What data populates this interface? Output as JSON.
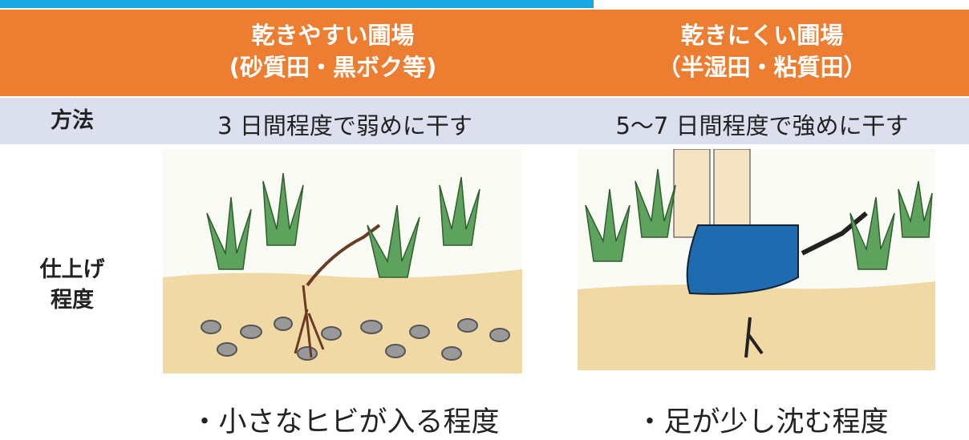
{
  "table": {
    "columns": [
      {
        "title": "乾きやすい圃場",
        "subtitle": "(砂質田・黒ボク等)"
      },
      {
        "title": "乾きにくい圃場",
        "subtitle": "（半湿田・粘質田）"
      }
    ],
    "rows": [
      {
        "label": [
          "方法"
        ],
        "cells": [
          "3 日間程度で弱めに干す",
          "5～7 日間程度で強めに干す"
        ]
      },
      {
        "label": [
          "仕上げ",
          "程度"
        ],
        "cells": [
          "・小さなヒビが入る程度",
          "・足が少し沈む程度"
        ]
      }
    ]
  }
}
